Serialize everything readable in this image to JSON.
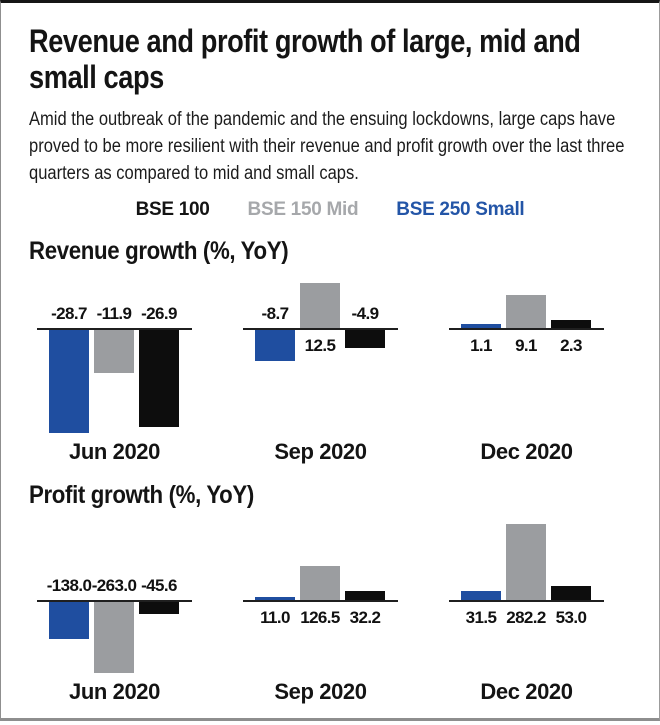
{
  "title": "Revenue and profit growth of large, mid and small caps",
  "subtitle": "Amid the outbreak of the pandemic and the ensuing lockdowns, large caps have proved to be more resilient with their revenue and profit growth over the last three quarters as compared to mid and small caps.",
  "legend": [
    {
      "label": "BSE 100",
      "color": "#141414"
    },
    {
      "label": "BSE 150 Mid",
      "color": "#a6a8ab"
    },
    {
      "label": "BSE 250 Small",
      "color": "#2355a7"
    }
  ],
  "colors": {
    "bse_250_small_bar": "#1f4ea0",
    "bse_150_mid_bar": "#9b9da0",
    "bse_100_bar": "#0d0d0d",
    "axis_line": "#1f1f1f"
  },
  "chart_data": [
    {
      "type": "bar",
      "title": "Revenue growth (%, YoY)",
      "unit": "%",
      "categories": [
        "Jun 2020",
        "Sep 2020",
        "Dec 2020"
      ],
      "series": [
        {
          "name": "BSE 250 Small",
          "color": "#1f4ea0",
          "values": [
            -28.7,
            -8.7,
            1.1
          ]
        },
        {
          "name": "BSE 150 Mid",
          "color": "#9b9da0",
          "values": [
            -11.9,
            12.5,
            9.1
          ]
        },
        {
          "name": "BSE 100",
          "color": "#0d0d0d",
          "values": [
            -26.9,
            -4.9,
            2.3
          ]
        }
      ],
      "value_labels": "one_decimal",
      "legend_position": "top",
      "grid": false
    },
    {
      "type": "bar",
      "title": "Profit growth (%, YoY)",
      "unit": "%",
      "categories": [
        "Jun 2020",
        "Sep 2020",
        "Dec 2020"
      ],
      "series": [
        {
          "name": "BSE 250 Small",
          "color": "#1f4ea0",
          "values": [
            -138.0,
            11.0,
            31.5
          ]
        },
        {
          "name": "BSE 150 Mid",
          "color": "#9b9da0",
          "values": [
            -263.0,
            126.5,
            282.2
          ]
        },
        {
          "name": "BSE 100",
          "color": "#0d0d0d",
          "values": [
            -45.6,
            32.2,
            53.0
          ]
        }
      ],
      "value_labels": "one_decimal",
      "legend_position": "top",
      "grid": false
    }
  ]
}
